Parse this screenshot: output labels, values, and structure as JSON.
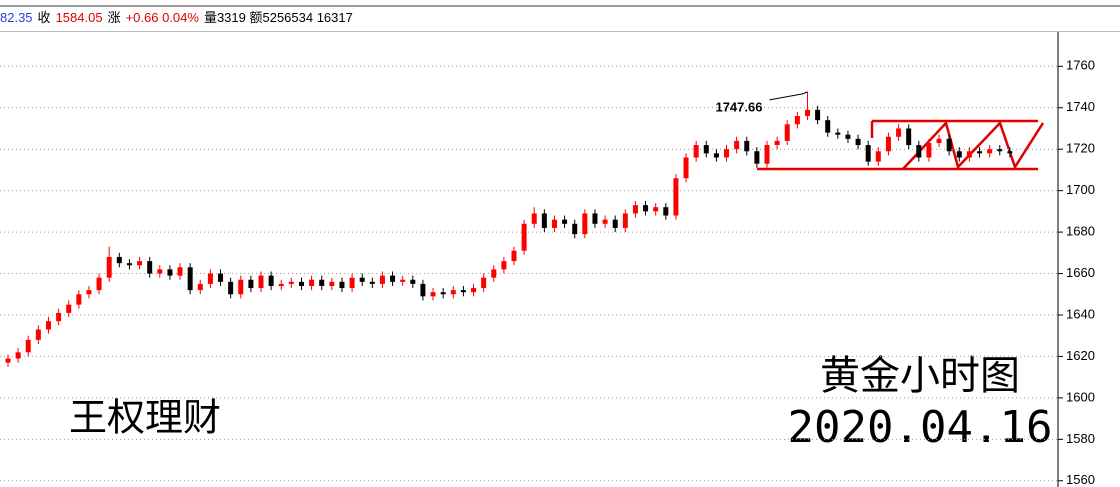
{
  "header": {
    "items": [
      {
        "text": "82.35",
        "color": "#2b3fd6"
      },
      {
        "text": "收",
        "color": "#000000"
      },
      {
        "text": "1584.05",
        "color": "#e00000"
      },
      {
        "text": "涨",
        "color": "#000000"
      },
      {
        "text": "+0.66 0.04%",
        "color": "#e00000"
      },
      {
        "text": "量3319 额5256534 16317",
        "color": "#000000"
      }
    ]
  },
  "chart_data": {
    "type": "candlestick",
    "title": "黄金小时图",
    "subtitle": "2020.04.16",
    "watermark": "王权理财",
    "up_color": "#ff0000",
    "down_color": "#000000",
    "ylim": [
      1557,
      1764
    ],
    "yticks": [
      1560,
      1580,
      1600,
      1620,
      1640,
      1660,
      1680,
      1700,
      1720,
      1740,
      1760
    ],
    "grid": true,
    "open": [
      1617,
      1619,
      1622,
      1628,
      1633,
      1637,
      1641,
      1645,
      1650,
      1652,
      1658,
      1668,
      1665,
      1664,
      1666,
      1660,
      1662,
      1659,
      1663,
      1652,
      1655,
      1660,
      1656,
      1650,
      1657,
      1653,
      1659,
      1654,
      1655,
      1656,
      1654,
      1657,
      1654,
      1656,
      1653,
      1658,
      1656,
      1655,
      1659,
      1656,
      1657,
      1655,
      1649,
      1651,
      1650,
      1652,
      1651,
      1653,
      1658,
      1662,
      1666,
      1671,
      1684,
      1689,
      1682,
      1686,
      1684,
      1679,
      1689,
      1684,
      1686,
      1682,
      1689,
      1693,
      1690,
      1692,
      1688,
      1706,
      1716,
      1722,
      1718,
      1716,
      1720,
      1724,
      1719,
      1713,
      1722,
      1724,
      1732,
      1736,
      1739,
      1734,
      1728,
      1727,
      1725,
      1722,
      1714,
      1719,
      1726,
      1730,
      1722,
      1716,
      1723,
      1725,
      1719,
      1716,
      1719,
      1718,
      1720,
      1719
    ],
    "high": [
      1621,
      1624,
      1630,
      1635,
      1639,
      1643,
      1647,
      1652,
      1654,
      1660,
      1673,
      1670,
      1667,
      1668,
      1668,
      1664,
      1664,
      1665,
      1665,
      1657,
      1662,
      1662,
      1658,
      1659,
      1659,
      1661,
      1661,
      1657,
      1658,
      1658,
      1659,
      1659,
      1658,
      1658,
      1660,
      1660,
      1658,
      1661,
      1661,
      1659,
      1659,
      1657,
      1653,
      1653,
      1654,
      1654,
      1655,
      1660,
      1664,
      1668,
      1673,
      1686,
      1692,
      1691,
      1688,
      1688,
      1686,
      1691,
      1691,
      1688,
      1688,
      1691,
      1695,
      1695,
      1694,
      1694,
      1708,
      1718,
      1724,
      1724,
      1720,
      1722,
      1726,
      1726,
      1721,
      1724,
      1726,
      1734,
      1738,
      1747.66,
      1741,
      1736,
      1730,
      1729,
      1727,
      1724,
      1721,
      1728,
      1732,
      1732,
      1724,
      1725,
      1727,
      1727,
      1721,
      1721,
      1721,
      1722,
      1722,
      1721
    ],
    "low": [
      1615,
      1617,
      1620,
      1626,
      1631,
      1635,
      1639,
      1643,
      1648,
      1650,
      1656,
      1663,
      1662,
      1662,
      1658,
      1658,
      1657,
      1657,
      1650,
      1650,
      1653,
      1654,
      1648,
      1648,
      1651,
      1651,
      1652,
      1652,
      1653,
      1652,
      1652,
      1652,
      1652,
      1651,
      1651,
      1654,
      1653,
      1653,
      1654,
      1654,
      1653,
      1647,
      1647,
      1648,
      1648,
      1649,
      1649,
      1651,
      1656,
      1660,
      1664,
      1669,
      1682,
      1680,
      1680,
      1682,
      1677,
      1677,
      1682,
      1682,
      1680,
      1680,
      1687,
      1688,
      1688,
      1686,
      1686,
      1704,
      1714,
      1716,
      1714,
      1714,
      1718,
      1717,
      1711,
      1711,
      1720,
      1722,
      1730,
      1734,
      1732,
      1726,
      1725,
      1723,
      1720,
      1712,
      1712,
      1717,
      1724,
      1720,
      1714,
      1714,
      1721,
      1717,
      1714,
      1714,
      1716,
      1716,
      1717,
      1716
    ],
    "close": [
      1619,
      1622,
      1628,
      1633,
      1637,
      1641,
      1645,
      1650,
      1652,
      1658,
      1668,
      1665,
      1664,
      1666,
      1660,
      1662,
      1659,
      1663,
      1652,
      1655,
      1660,
      1656,
      1650,
      1657,
      1653,
      1659,
      1654,
      1655,
      1656,
      1654,
      1657,
      1654,
      1656,
      1653,
      1658,
      1656,
      1655,
      1659,
      1656,
      1657,
      1655,
      1649,
      1651,
      1650,
      1652,
      1651,
      1653,
      1658,
      1662,
      1666,
      1671,
      1684,
      1689,
      1682,
      1686,
      1684,
      1679,
      1689,
      1684,
      1686,
      1682,
      1689,
      1693,
      1690,
      1692,
      1688,
      1706,
      1716,
      1722,
      1718,
      1716,
      1720,
      1724,
      1719,
      1713,
      1722,
      1724,
      1732,
      1736,
      1739,
      1734,
      1728,
      1727,
      1725,
      1722,
      1714,
      1719,
      1726,
      1730,
      1722,
      1716,
      1723,
      1725,
      1719,
      1716,
      1719,
      1718,
      1720,
      1719,
      1718
    ]
  }
}
